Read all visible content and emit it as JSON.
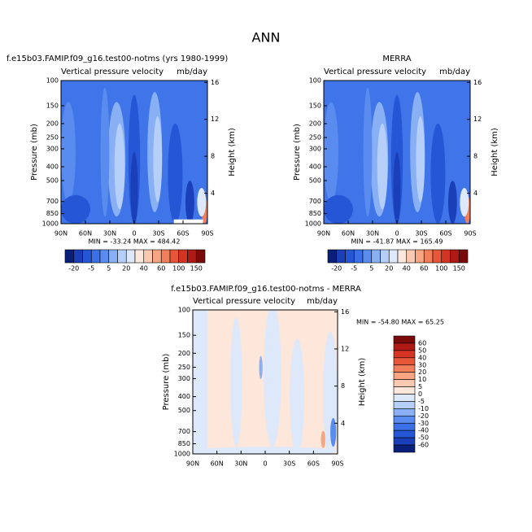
{
  "title": "ANN",
  "chart_data": [
    {
      "type": "contour",
      "title": "f.e15b03.FAMIP.f09_g16.test00-notms (yrs 1980-1999)",
      "title_align": "left",
      "subtitle_left": "Vertical pressure velocity",
      "subtitle_right": "mb/day",
      "ylabel": "Pressure (mb)",
      "y2label": "Height (km)",
      "categories": [
        "90N",
        "60N",
        "30N",
        "0",
        "30S",
        "60S",
        "90S"
      ],
      "ylim": [
        1000,
        100
      ],
      "log_scale": true,
      "yticks": [
        100,
        150,
        200,
        250,
        300,
        400,
        500,
        700,
        850,
        1000
      ],
      "y2lim": [
        0.7,
        16.2
      ],
      "y2ticks": [
        4,
        8,
        12,
        16
      ],
      "minmax": "MIN = -33.24   MAX = 484.42",
      "colorbar": {
        "orientation": "horizontal",
        "labels": [
          -20,
          -5,
          5,
          20,
          40,
          60,
          100,
          150
        ],
        "colors": [
          "#0a1f7a",
          "#1a3fb8",
          "#2456d6",
          "#3a6fe6",
          "#5a8cf0",
          "#89b0f5",
          "#b5cff8",
          "#dde8fb",
          "#fde6da",
          "#fbc9b2",
          "#f7a583",
          "#f27f5c",
          "#e8563a",
          "#d43422",
          "#b01a14",
          "#7a0a0a"
        ]
      }
    },
    {
      "type": "contour",
      "title": "MERRA",
      "title_align": "center",
      "subtitle_left": "Vertical pressure velocity",
      "subtitle_right": "mb/day",
      "ylabel": "Pressure (mb)",
      "y2label": "Height (km)",
      "categories": [
        "90N",
        "60N",
        "30N",
        "0",
        "30S",
        "60S",
        "90S"
      ],
      "ylim": [
        1000,
        100
      ],
      "log_scale": true,
      "yticks": [
        100,
        150,
        200,
        250,
        300,
        400,
        500,
        700,
        850,
        1000
      ],
      "y2lim": [
        0.7,
        16.2
      ],
      "y2ticks": [
        4,
        8,
        12,
        16
      ],
      "minmax": "MIN = -41.87   MAX = 165.49",
      "colorbar": {
        "orientation": "horizontal",
        "labels": [
          -20,
          -5,
          5,
          20,
          40,
          60,
          100,
          150
        ],
        "colors": [
          "#0a1f7a",
          "#1a3fb8",
          "#2456d6",
          "#3a6fe6",
          "#5a8cf0",
          "#89b0f5",
          "#b5cff8",
          "#dde8fb",
          "#fde6da",
          "#fbc9b2",
          "#f7a583",
          "#f27f5c",
          "#e8563a",
          "#d43422",
          "#b01a14",
          "#7a0a0a"
        ]
      }
    },
    {
      "type": "contour",
      "title": "f.e15b03.FAMIP.f09_g16.test00-notms - MERRA",
      "title_align": "center",
      "subtitle_left": "Vertical pressure velocity",
      "subtitle_right": "mb/day",
      "ylabel": "Pressure (mb)",
      "y2label": "Height (km)",
      "categories": [
        "90N",
        "60N",
        "30N",
        "0",
        "30S",
        "60S",
        "90S"
      ],
      "ylim": [
        1000,
        100
      ],
      "log_scale": true,
      "yticks": [
        100,
        150,
        200,
        250,
        300,
        400,
        500,
        700,
        850,
        1000
      ],
      "y2lim": [
        0.7,
        16.2
      ],
      "y2ticks": [
        4,
        8,
        12,
        16
      ],
      "minmax": "MIN = -54.80   MAX =  65.25",
      "colorbar": {
        "orientation": "vertical",
        "labels": [
          60,
          50,
          40,
          30,
          20,
          10,
          5,
          0,
          -5,
          -10,
          -20,
          -30,
          -40,
          -50,
          -60
        ],
        "colors": [
          "#7a0a0a",
          "#b01a14",
          "#d43422",
          "#e8563a",
          "#f27f5c",
          "#f7a583",
          "#fbc9b2",
          "#fde6da",
          "#dde8fb",
          "#b5cff8",
          "#89b0f5",
          "#5a8cf0",
          "#3a6fe6",
          "#2456d6",
          "#1a3fb8",
          "#0a1f7a"
        ]
      }
    }
  ]
}
